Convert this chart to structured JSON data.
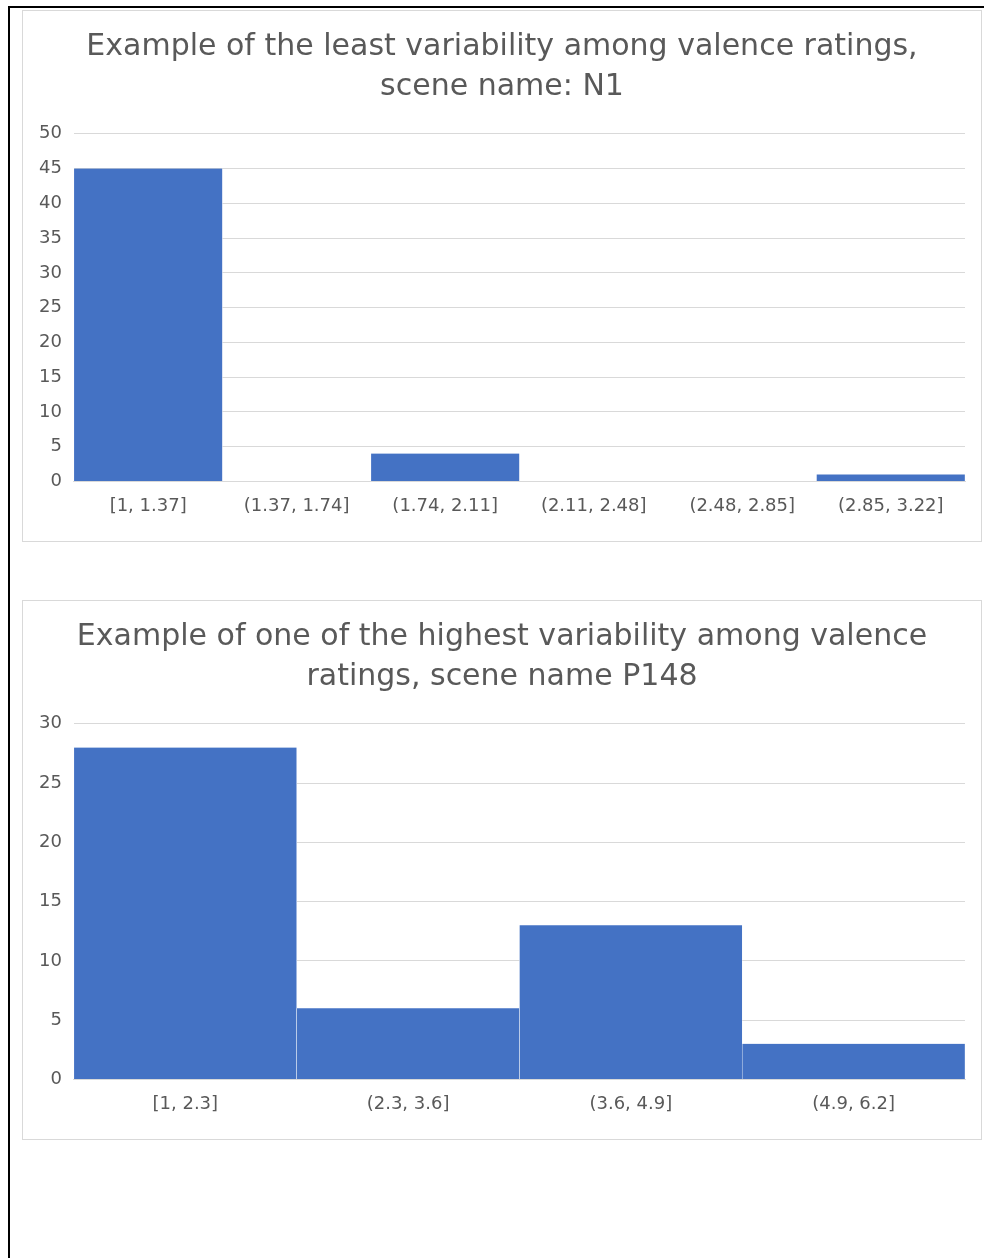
{
  "chart_data": [
    {
      "type": "bar",
      "title": "Example of the least variability among valence ratings, scene name: N1",
      "categories": [
        "[1, 1.37]",
        "(1.37, 1.74]",
        "(1.74, 2.11]",
        "(2.11, 2.48]",
        "(2.48, 2.85]",
        "(2.85, 3.22]"
      ],
      "values": [
        45,
        0,
        4,
        0,
        0,
        1
      ],
      "color": "#4472c4",
      "ylim": [
        0,
        50
      ],
      "yticks": [
        0,
        5,
        10,
        15,
        20,
        25,
        30,
        35,
        40,
        45,
        50
      ],
      "grid": "y"
    },
    {
      "type": "bar",
      "title": "Example of one of the highest variability among valence ratings, scene name P148",
      "categories": [
        "[1, 2.3]",
        "(2.3, 3.6]",
        "(3.6, 4.9]",
        "(4.9, 6.2]"
      ],
      "values": [
        28,
        6,
        13,
        3
      ],
      "color": "#4472c4",
      "ylim": [
        0,
        30
      ],
      "yticks": [
        0,
        5,
        10,
        15,
        20,
        25,
        30
      ],
      "grid": "y"
    }
  ]
}
